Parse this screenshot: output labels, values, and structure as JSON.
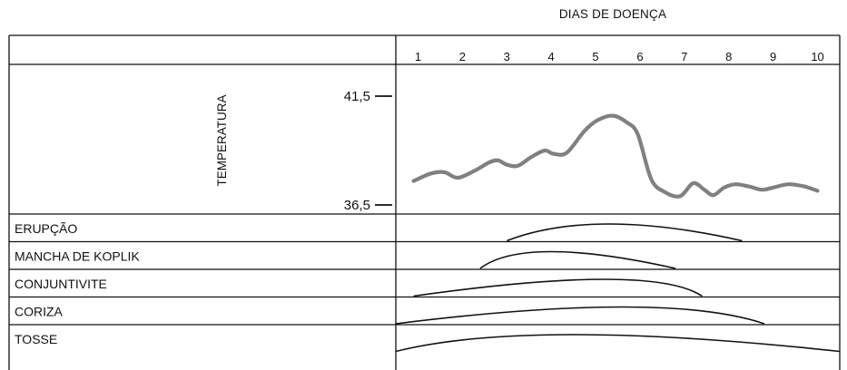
{
  "header": {
    "title": "DIAS DE DOENÇA"
  },
  "chart_data": {
    "type": "line",
    "x_ticks": [
      "1",
      "2",
      "3",
      "4",
      "5",
      "6",
      "7",
      "8",
      "9",
      "10"
    ],
    "temperature": {
      "label": "TEMPERATURA",
      "y_ticks": [
        "41,5",
        "36,5"
      ],
      "ylim": [
        36.5,
        41.5
      ],
      "xlim": [
        0.5,
        10.5
      ],
      "series_color": "#808080",
      "points": [
        {
          "x": 0.9,
          "y": 37.6
        },
        {
          "x": 1.3,
          "y": 37.95
        },
        {
          "x": 1.6,
          "y": 38.0
        },
        {
          "x": 1.9,
          "y": 37.75
        },
        {
          "x": 2.3,
          "y": 38.1
        },
        {
          "x": 2.6,
          "y": 38.45
        },
        {
          "x": 2.8,
          "y": 38.55
        },
        {
          "x": 3.0,
          "y": 38.35
        },
        {
          "x": 3.25,
          "y": 38.3
        },
        {
          "x": 3.55,
          "y": 38.7
        },
        {
          "x": 3.85,
          "y": 39.0
        },
        {
          "x": 4.05,
          "y": 38.85
        },
        {
          "x": 4.35,
          "y": 38.9
        },
        {
          "x": 4.75,
          "y": 39.9
        },
        {
          "x": 5.05,
          "y": 40.4
        },
        {
          "x": 5.4,
          "y": 40.6
        },
        {
          "x": 5.7,
          "y": 40.3
        },
        {
          "x": 5.95,
          "y": 39.75
        },
        {
          "x": 6.25,
          "y": 37.7
        },
        {
          "x": 6.55,
          "y": 37.1
        },
        {
          "x": 6.9,
          "y": 36.9
        },
        {
          "x": 7.2,
          "y": 37.5
        },
        {
          "x": 7.45,
          "y": 37.2
        },
        {
          "x": 7.65,
          "y": 36.95
        },
        {
          "x": 7.9,
          "y": 37.3
        },
        {
          "x": 8.15,
          "y": 37.45
        },
        {
          "x": 8.45,
          "y": 37.35
        },
        {
          "x": 8.75,
          "y": 37.2
        },
        {
          "x": 9.0,
          "y": 37.3
        },
        {
          "x": 9.35,
          "y": 37.45
        },
        {
          "x": 9.7,
          "y": 37.35
        },
        {
          "x": 10.0,
          "y": 37.15
        }
      ]
    },
    "symptoms": [
      {
        "label": "ERUPÇÃO",
        "start": 3.0,
        "end": 8.3,
        "peak_day": 5.3
      },
      {
        "label": "MANCHA DE KOPLIK",
        "start": 2.4,
        "end": 6.8,
        "peak_day": 4.0
      },
      {
        "label": "CONJUNTIVITE",
        "start": 0.9,
        "end": 7.4,
        "peak_day": 5.2
      },
      {
        "label": "CORIZA",
        "start": 0.5,
        "end": 8.8,
        "peak_day": 5.6
      },
      {
        "label": "TOSSE",
        "start": 0.5,
        "end": 10.5,
        "peak_day": 4.5
      }
    ]
  }
}
